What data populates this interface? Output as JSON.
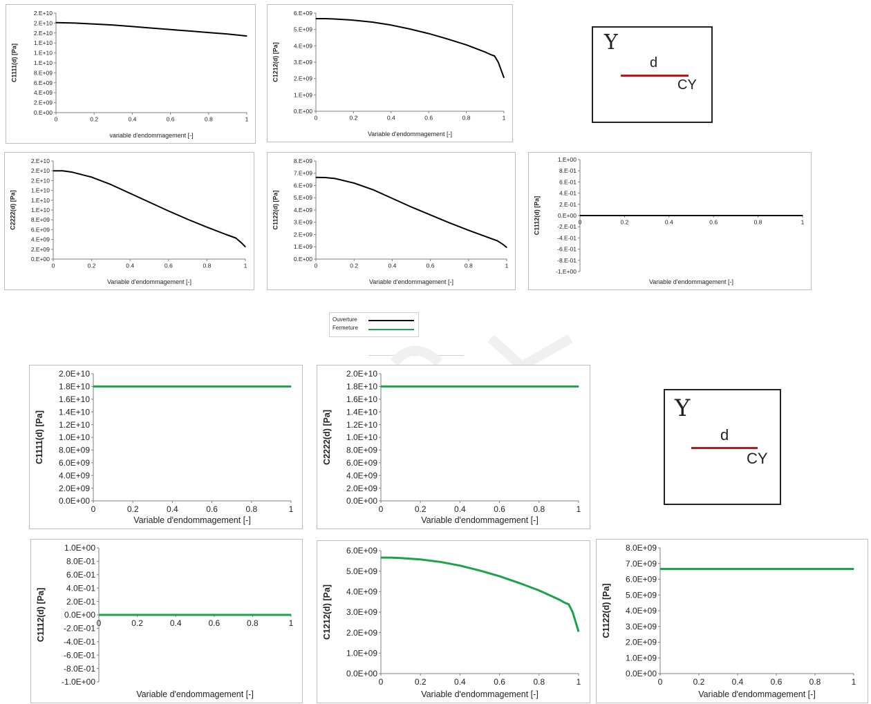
{
  "legend": {
    "items": [
      {
        "label": "Ouverture",
        "color": "#000000"
      },
      {
        "label": "Fermeture",
        "color": "#1aa34a"
      }
    ]
  },
  "diagrams": [
    {
      "y_label": "Y",
      "d_label": "d",
      "cy_label": "CY",
      "crack_color": "#c0141a"
    },
    {
      "y_label": "Y",
      "d_label": "d",
      "cy_label": "CY",
      "crack_color": "#c0141a"
    }
  ],
  "chart_data": [
    {
      "type": "line",
      "series_color": "#000000",
      "ylabel": "C1111(d)  [Pa]",
      "xlabel": "variable  d'endommagement   [-]",
      "xlim": [
        0,
        1
      ],
      "xticks": [
        "0",
        "0.2",
        "0.4",
        "0.6",
        "0.8",
        "1"
      ],
      "ylim": [
        0,
        20000000000.0
      ],
      "yticks": [
        "0.E+00",
        "2.E+09",
        "4.E+09",
        "6.E+09",
        "8.E+09",
        "1.E+10",
        "1.E+10",
        "1.E+10",
        "2.E+10",
        "2.E+10",
        "2.E+10"
      ],
      "x": [
        0,
        0.1,
        0.2,
        0.3,
        0.4,
        0.5,
        0.6,
        0.7,
        0.8,
        0.9,
        1.0
      ],
      "y": [
        18100000000.0,
        18000000000.0,
        17800000000.0,
        17600000000.0,
        17300000000.0,
        17000000000.0,
        16700000000.0,
        16400000000.0,
        16100000000.0,
        15800000000.0,
        15400000000.0
      ]
    },
    {
      "type": "line",
      "series_color": "#000000",
      "ylabel": "C1212(d)  [Pa]",
      "xlabel": "Variable  d'endommagement   [-]",
      "xlim": [
        0,
        1
      ],
      "xticks": [
        "0",
        "0.2",
        "0.4",
        "0.6",
        "0.8",
        "1"
      ],
      "ylim": [
        0,
        6000000000.0
      ],
      "yticks": [
        "0.E+00",
        "1.E+09",
        "2.E+09",
        "3.E+09",
        "4.E+09",
        "5.E+09",
        "6.E+09"
      ],
      "x": [
        0,
        0.05,
        0.1,
        0.2,
        0.3,
        0.4,
        0.5,
        0.6,
        0.7,
        0.8,
        0.9,
        0.93,
        0.95,
        0.97,
        1.0
      ],
      "y": [
        5660000000.0,
        5660000000.0,
        5640000000.0,
        5570000000.0,
        5450000000.0,
        5270000000.0,
        5030000000.0,
        4750000000.0,
        4420000000.0,
        4060000000.0,
        3620000000.0,
        3460000000.0,
        3380000000.0,
        3000000000.0,
        2050000000.0
      ]
    },
    {
      "type": "line",
      "series_color": "#000000",
      "ylabel": "C2222(d)  [Pa]",
      "xlabel": "Variable  d'endommagement   [-]",
      "xlim": [
        0,
        1
      ],
      "xticks": [
        "0",
        "0.2",
        "0.4",
        "0.6",
        "0.8",
        "1"
      ],
      "ylim": [
        0,
        20000000000.0
      ],
      "yticks": [
        "0.E+00",
        "2.E+09",
        "4.E+09",
        "6.E+09",
        "8.E+09",
        "1.E+10",
        "1.E+10",
        "1.E+10",
        "2.E+10",
        "2.E+10",
        "2.E+10"
      ],
      "x": [
        0,
        0.05,
        0.1,
        0.2,
        0.3,
        0.4,
        0.5,
        0.6,
        0.7,
        0.8,
        0.9,
        0.95,
        0.98,
        1.0
      ],
      "y": [
        18000000000.0,
        18000000000.0,
        17700000000.0,
        16700000000.0,
        15200000000.0,
        13400000000.0,
        11600000000.0,
        9800000000.0,
        8100000000.0,
        6500000000.0,
        5000000000.0,
        4300000000.0,
        3300000000.0,
        2500000000.0
      ]
    },
    {
      "type": "line",
      "series_color": "#000000",
      "ylabel": "C1122(d)  [Pa]",
      "xlabel": "Variable  d'endommagement   [-]",
      "xlim": [
        0,
        1
      ],
      "xticks": [
        "0",
        "0.2",
        "0.4",
        "0.6",
        "0.8",
        "1"
      ],
      "ylim": [
        0,
        8000000000.0
      ],
      "yticks": [
        "0.E+00",
        "1.E+09",
        "2.E+09",
        "3.E+09",
        "4.E+09",
        "5.E+09",
        "6.E+09",
        "7.E+09",
        "8.E+09"
      ],
      "x": [
        0,
        0.05,
        0.1,
        0.2,
        0.3,
        0.4,
        0.5,
        0.6,
        0.7,
        0.8,
        0.9,
        0.95,
        0.98,
        1.0
      ],
      "y": [
        6660000000.0,
        6650000000.0,
        6570000000.0,
        6200000000.0,
        5650000000.0,
        4950000000.0,
        4250000000.0,
        3600000000.0,
        2950000000.0,
        2350000000.0,
        1780000000.0,
        1500000000.0,
        1200000000.0,
        950000000.0
      ]
    },
    {
      "type": "line",
      "series_color": "#000000",
      "x_axis_at_zero": true,
      "ylabel": "C1112(d)  [Pa]",
      "xlabel": "Variable  d'endommagement   [-]",
      "xlim": [
        0,
        1
      ],
      "xticks": [
        "0",
        "0.2",
        "0.4",
        "0.6",
        "0.8",
        "1"
      ],
      "ylim": [
        -1.0,
        1.0
      ],
      "yticks": [
        "-1.E+00",
        "-8.E-01",
        "-6.E-01",
        "-4.E-01",
        "-2.E-01",
        "0.E+00",
        "2.E-01",
        "4.E-01",
        "6.E-01",
        "8.E-01",
        "1.E+00"
      ],
      "x": [
        0,
        1
      ],
      "y": [
        0,
        0
      ]
    },
    {
      "type": "line",
      "series_color": "#1aa34a",
      "ylabel": "C1111(d) [Pa]",
      "xlabel": "Variable d'endommagement [-]",
      "xlim": [
        0,
        1
      ],
      "xticks": [
        "0",
        "0.2",
        "0.4",
        "0.6",
        "0.8",
        "1"
      ],
      "ylim": [
        0,
        20000000000.0
      ],
      "yticks": [
        "0.0E+00",
        "2.0E+09",
        "4.0E+09",
        "6.0E+09",
        "8.0E+09",
        "1.0E+10",
        "1.2E+10",
        "1.4E+10",
        "1.6E+10",
        "1.8E+10",
        "2.0E+10"
      ],
      "x": [
        0,
        1
      ],
      "y": [
        18000000000.0,
        18000000000.0
      ]
    },
    {
      "type": "line",
      "series_color": "#1aa34a",
      "ylabel": "C2222(d) [Pa]",
      "xlabel": "Variable d'endommagement [-]",
      "xlim": [
        0,
        1
      ],
      "xticks": [
        "0",
        "0.2",
        "0.4",
        "0.6",
        "0.8",
        "1"
      ],
      "ylim": [
        0,
        20000000000.0
      ],
      "yticks": [
        "0.0E+00",
        "2.0E+09",
        "4.0E+09",
        "6.0E+09",
        "8.0E+09",
        "1.0E+10",
        "1.2E+10",
        "1.4E+10",
        "1.6E+10",
        "1.8E+10",
        "2.0E+10"
      ],
      "x": [
        0,
        1
      ],
      "y": [
        18000000000.0,
        18000000000.0
      ]
    },
    {
      "type": "line",
      "series_color": "#1aa34a",
      "x_axis_at_zero": true,
      "ylabel": "C1112(d) [Pa]",
      "xlabel": "Variable d'endommagement [-]",
      "xlim": [
        0,
        1
      ],
      "xticks": [
        "0",
        "0.2",
        "0.4",
        "0.6",
        "0.8",
        "1"
      ],
      "ylim": [
        -1.0,
        1.0
      ],
      "yticks": [
        "-1.0E+00",
        "-8.0E-01",
        "-6.0E-01",
        "-4.0E-01",
        "-2.0E-01",
        "0.0E+00",
        "2.0E-01",
        "4.0E-01",
        "6.0E-01",
        "8.0E-01",
        "1.0E+00"
      ],
      "x": [
        0,
        1
      ],
      "y": [
        0,
        0
      ]
    },
    {
      "type": "line",
      "series_color": "#1aa34a",
      "ylabel": "C1212(d) [Pa]",
      "xlabel": "Variable d'endommagement [-]",
      "xlim": [
        0,
        1
      ],
      "xticks": [
        "0",
        "0.2",
        "0.4",
        "0.6",
        "0.8",
        "1"
      ],
      "ylim": [
        0,
        6000000000.0
      ],
      "yticks": [
        "0.0E+00",
        "1.0E+09",
        "2.0E+09",
        "3.0E+09",
        "4.0E+09",
        "5.0E+09",
        "6.0E+09"
      ],
      "x": [
        0,
        0.05,
        0.1,
        0.2,
        0.3,
        0.4,
        0.5,
        0.6,
        0.7,
        0.8,
        0.9,
        0.93,
        0.95,
        0.97,
        1.0
      ],
      "y": [
        5660000000.0,
        5660000000.0,
        5640000000.0,
        5570000000.0,
        5450000000.0,
        5270000000.0,
        5030000000.0,
        4750000000.0,
        4420000000.0,
        4060000000.0,
        3620000000.0,
        3460000000.0,
        3380000000.0,
        3000000000.0,
        2050000000.0
      ]
    },
    {
      "type": "line",
      "series_color": "#1aa34a",
      "ylabel": "C1122(d) [Pa]",
      "xlabel": "Variable d'endommagement [-]",
      "xlim": [
        0,
        1
      ],
      "xticks": [
        "0",
        "0.2",
        "0.4",
        "0.6",
        "0.8",
        "1"
      ],
      "ylim": [
        0,
        8000000000.0
      ],
      "yticks": [
        "0.0E+00",
        "1.0E+09",
        "2.0E+09",
        "3.0E+09",
        "4.0E+09",
        "5.0E+09",
        "6.0E+09",
        "7.0E+09",
        "8.0E+09"
      ],
      "x": [
        0,
        1
      ],
      "y": [
        6660000000.0,
        6660000000.0
      ]
    }
  ]
}
